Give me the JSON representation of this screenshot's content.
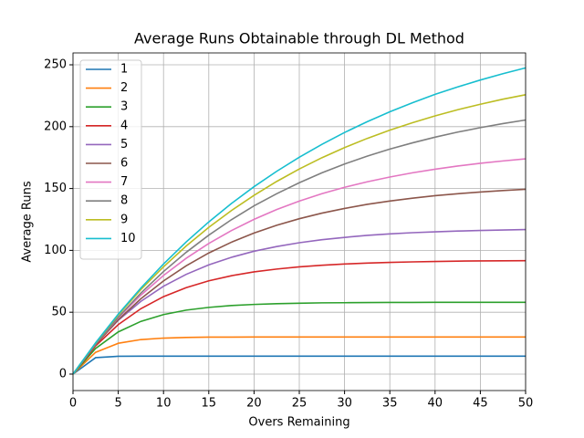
{
  "chart_data": {
    "type": "line",
    "title": "Average Runs Obtainable through DL Method",
    "x_label": "Overs Remaining",
    "y_label": "Average Runs",
    "x": [
      0,
      2.5,
      5,
      7.5,
      10,
      12.5,
      15,
      17.5,
      20,
      22.5,
      25,
      27.5,
      30,
      32.5,
      35,
      37.5,
      40,
      42.5,
      45,
      47.5,
      50
    ],
    "series": [
      {
        "name": "1",
        "color": "#1f77b4",
        "values": [
          0,
          13.3,
          14.4,
          14.5,
          14.5,
          14.5,
          14.5,
          14.5,
          14.5,
          14.5,
          14.5,
          14.5,
          14.5,
          14.5,
          14.5,
          14.5,
          14.5,
          14.5,
          14.5,
          14.5,
          14.5
        ]
      },
      {
        "name": "2",
        "color": "#ff7f0e",
        "values": [
          0,
          17.6,
          24.9,
          27.9,
          29.1,
          29.6,
          29.9,
          29.9,
          30,
          30,
          30,
          30,
          30,
          30,
          30,
          30,
          30,
          30,
          30,
          30,
          30
        ]
      },
      {
        "name": "3",
        "color": "#2ca02c",
        "values": [
          0,
          20.7,
          34.1,
          42.6,
          48.1,
          51.7,
          53.9,
          55.4,
          56.3,
          56.9,
          57.3,
          57.6,
          57.7,
          57.8,
          57.9,
          57.9,
          58,
          58,
          58,
          58,
          58
        ]
      },
      {
        "name": "4",
        "color": "#d62728",
        "values": [
          0,
          22.8,
          40,
          52.9,
          62.6,
          69.9,
          75.4,
          79.5,
          82.6,
          84.9,
          86.7,
          88,
          89,
          89.7,
          90.3,
          90.7,
          91,
          91.3,
          91.5,
          91.6,
          91.7
        ]
      },
      {
        "name": "5",
        "color": "#9467bd",
        "values": [
          0,
          24.2,
          43.5,
          58.8,
          71,
          80.6,
          88.3,
          94.4,
          99.3,
          103.1,
          106.2,
          108.6,
          110.5,
          112.1,
          113.3,
          114.3,
          115,
          115.6,
          116.1,
          116.5,
          116.8
        ]
      },
      {
        "name": "6",
        "color": "#8c564b",
        "values": [
          0,
          23.7,
          43.9,
          60.9,
          75.3,
          87.5,
          97.9,
          106.6,
          114,
          120.3,
          125.6,
          130.1,
          133.9,
          137.2,
          139.9,
          142.2,
          144.2,
          145.8,
          147.2,
          148.4,
          149.4
        ]
      },
      {
        "name": "7",
        "color": "#e377c2",
        "values": [
          0,
          24.3,
          45.5,
          63.8,
          79.7,
          93.6,
          105.6,
          116,
          125.1,
          133,
          139.8,
          145.8,
          151,
          155.4,
          159.3,
          162.7,
          165.6,
          168.2,
          170.4,
          172.3,
          174
        ]
      },
      {
        "name": "8",
        "color": "#7f7f7f",
        "values": [
          0,
          24.3,
          46,
          65.5,
          82.9,
          98.4,
          112.3,
          124.8,
          136,
          145.8,
          154.7,
          162.7,
          169.8,
          176.2,
          181.9,
          186.9,
          191.5,
          195.6,
          199.2,
          202.5,
          205.4
        ]
      },
      {
        "name": "9",
        "color": "#bcbd22",
        "values": [
          0,
          25.1,
          47.8,
          68.3,
          86.7,
          103.5,
          118.6,
          132.2,
          144.5,
          155.7,
          165.8,
          174.9,
          183.1,
          190.5,
          197.2,
          203.2,
          208.7,
          213.7,
          218.1,
          222.2,
          225.8
        ]
      },
      {
        "name": "10",
        "color": "#17becf",
        "values": [
          0,
          25.3,
          48.5,
          69.6,
          89,
          106.8,
          123,
          137.9,
          151.5,
          163.9,
          175.3,
          185.7,
          195.3,
          204,
          212,
          219.3,
          226.1,
          232.1,
          237.7,
          242.8,
          247.5
        ]
      }
    ],
    "xlim": [
      0,
      50
    ],
    "ylim": [
      -13.3,
      259.6
    ],
    "xticks": [
      0,
      5,
      10,
      15,
      20,
      25,
      30,
      35,
      40,
      45,
      50
    ],
    "yticks": [
      0,
      50,
      100,
      150,
      200,
      250
    ],
    "grid": true,
    "legend": "upper-left"
  }
}
